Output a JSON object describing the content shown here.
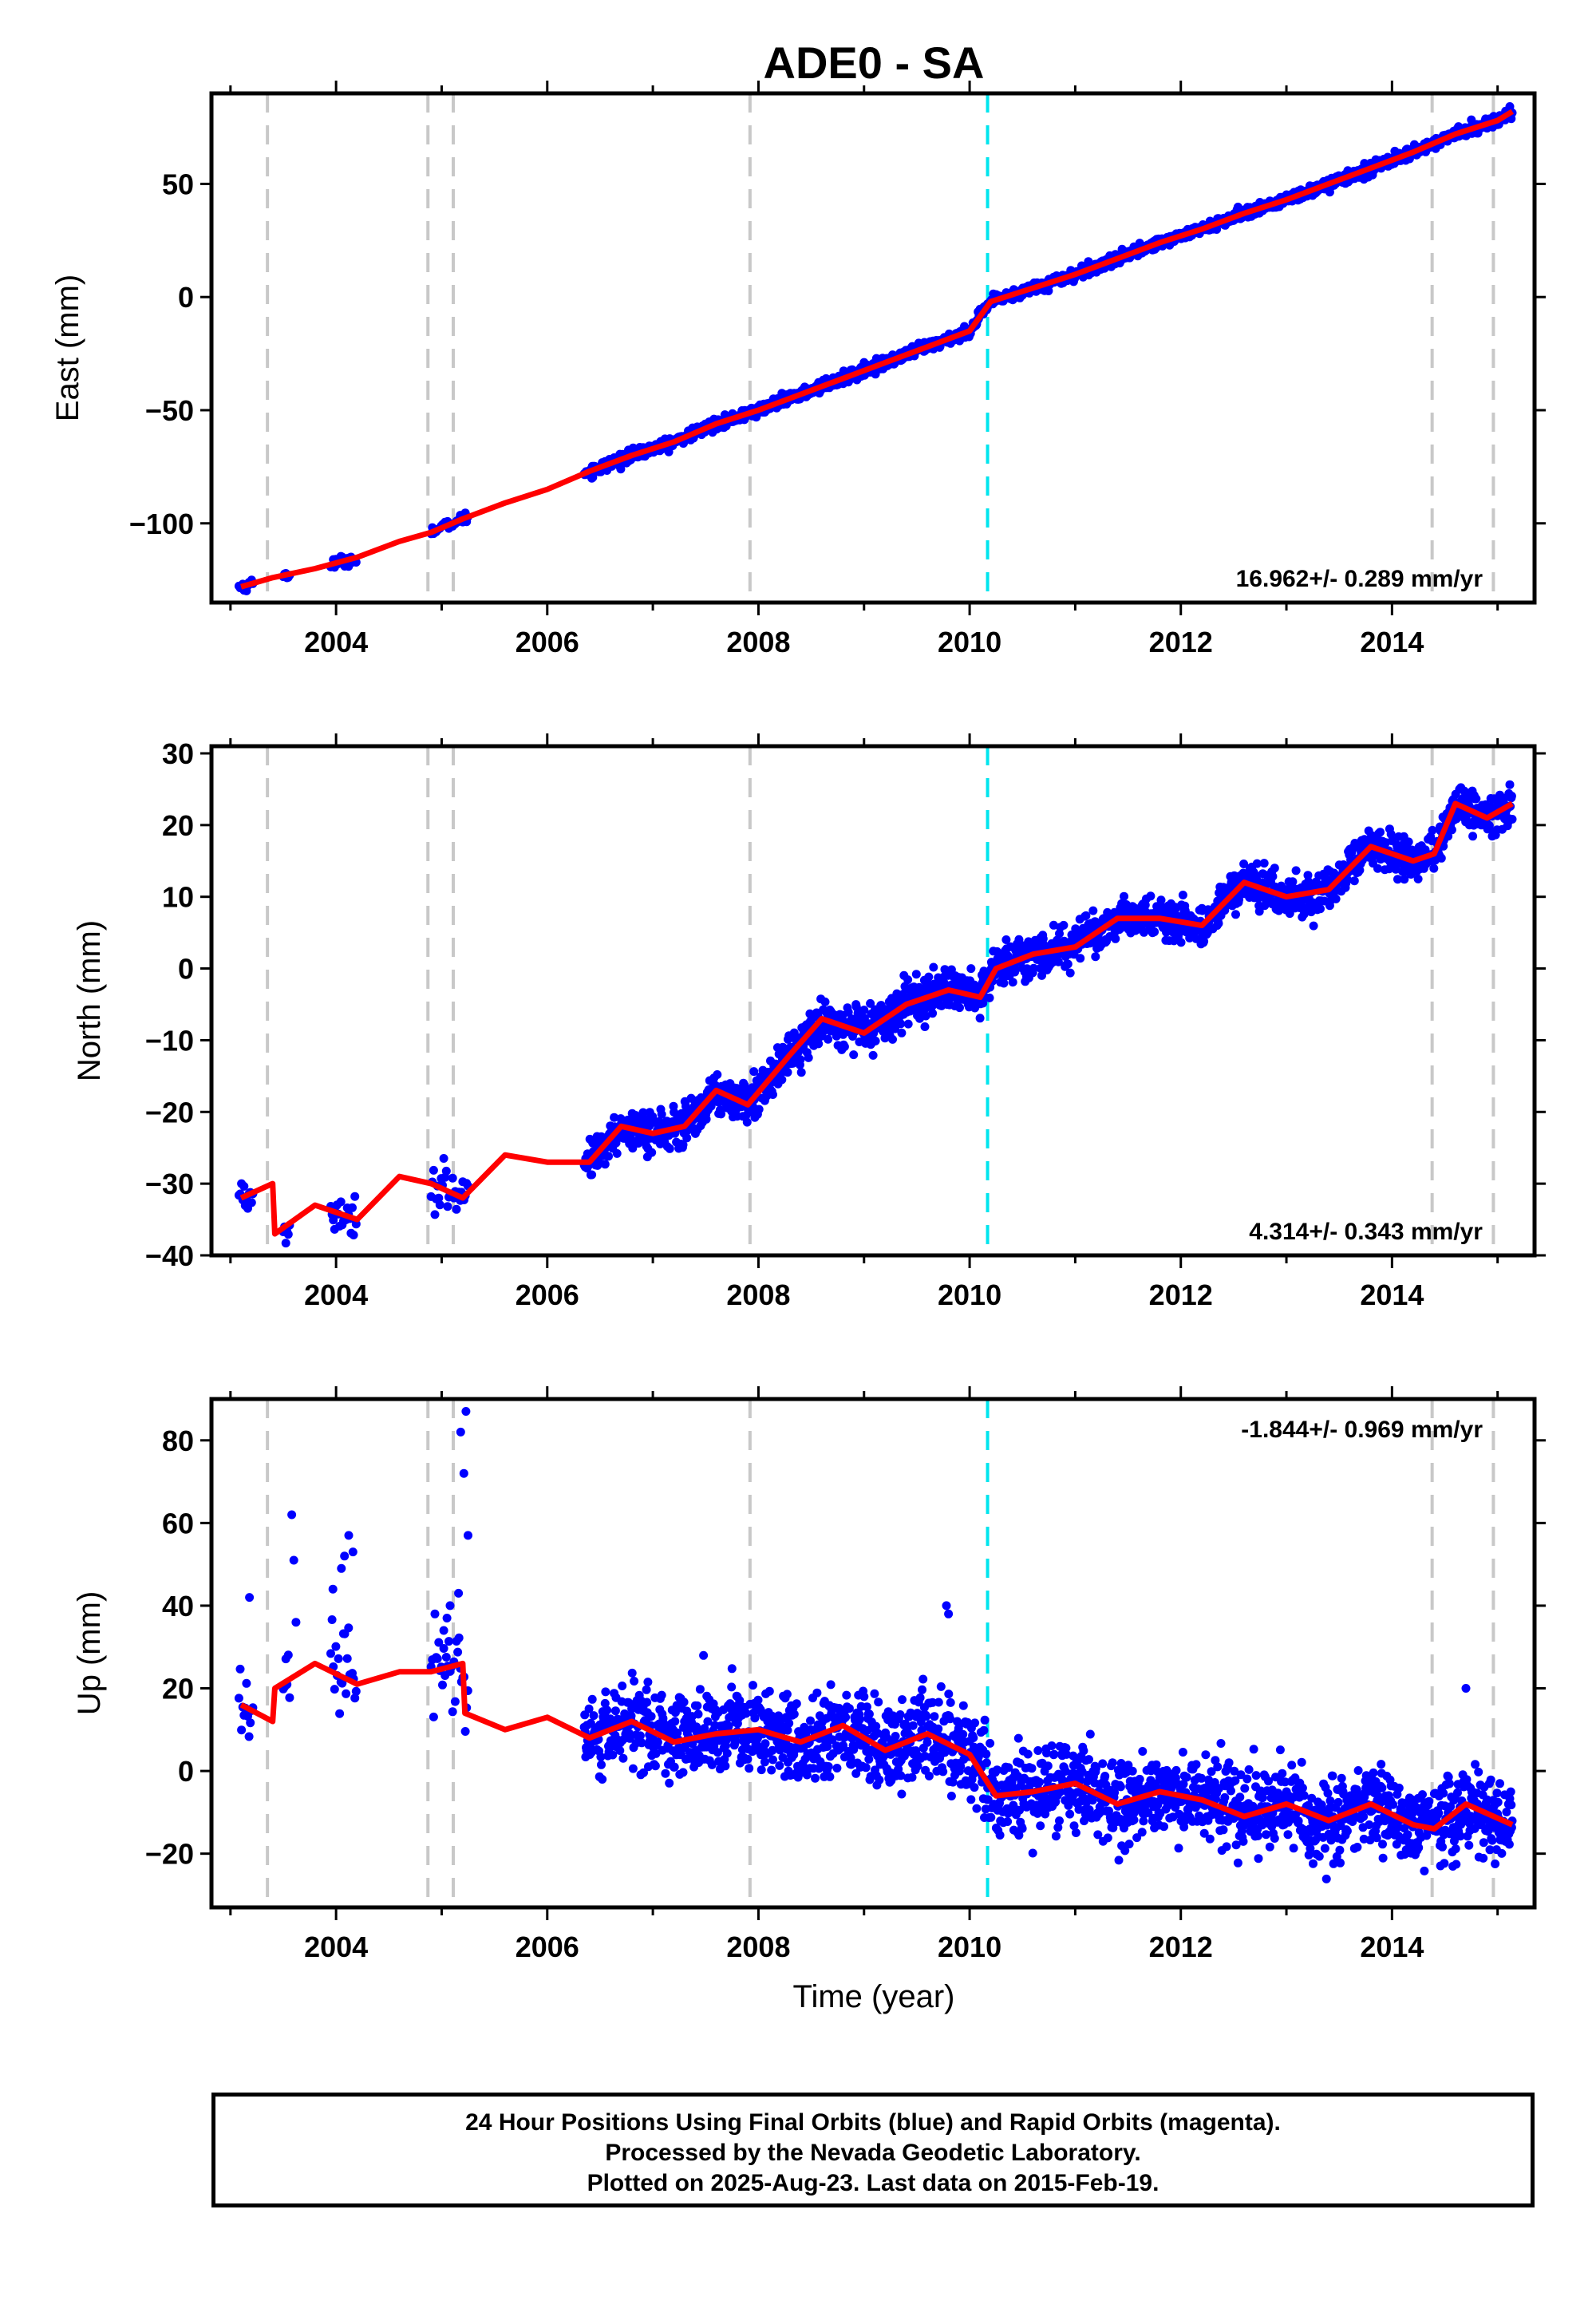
{
  "title": "ADE0 - SA",
  "xlabel": "Time (year)",
  "footer": {
    "line1": "24 Hour Positions Using Final Orbits (blue) and Rapid Orbits (magenta).",
    "line2": "Processed by the Nevada Geodetic Laboratory.",
    "line3": "Plotted on 2025-Aug-23. Last data on 2015-Feb-19."
  },
  "colors": {
    "data": "#0000ff",
    "model": "#ff0000",
    "equipment_change": "#c8c8c8",
    "earthquake": "#00e5ee",
    "frame": "#000000"
  },
  "chart_data": [
    {
      "type": "scatter",
      "ylabel": "East (mm)",
      "rate_label": "16.962+/- 0.289 mm/yr",
      "xlim": [
        2002.82,
        2015.35
      ],
      "ylim": [
        -135,
        90
      ],
      "xticks": [
        2004,
        2006,
        2008,
        2010,
        2012,
        2014
      ],
      "yticks": [
        -100,
        -50,
        0,
        50
      ],
      "rate": 16.962,
      "series": [
        {
          "role": "model",
          "x": [
            2003.1,
            2003.4,
            2003.8,
            2004.2,
            2004.6,
            2004.9,
            2005.2,
            2005.6,
            2006.0,
            2006.4,
            2006.8,
            2007.2,
            2007.6,
            2008.0,
            2008.4,
            2008.8,
            2009.2,
            2009.6,
            2010.0,
            2010.2,
            2010.6,
            2011.0,
            2011.4,
            2011.8,
            2012.2,
            2012.6,
            2013.0,
            2013.4,
            2013.8,
            2014.2,
            2014.6,
            2015.0,
            2015.14
          ],
          "y": [
            -128,
            -124,
            -120,
            -115,
            -108,
            -104,
            -98,
            -91,
            -85,
            -77,
            -70,
            -64,
            -56,
            -50,
            -43,
            -36,
            -29,
            -22,
            -15,
            -2,
            4,
            10,
            17,
            24,
            30,
            37,
            43,
            50,
            57,
            64,
            72,
            78,
            82
          ]
        }
      ]
    },
    {
      "type": "scatter",
      "ylabel": "North (mm)",
      "rate_label": "4.314+/- 0.343 mm/yr",
      "xlim": [
        2002.82,
        2015.35
      ],
      "ylim": [
        -40,
        31
      ],
      "xticks": [
        2004,
        2006,
        2008,
        2010,
        2012,
        2014
      ],
      "yticks": [
        -40,
        -30,
        -20,
        -10,
        0,
        10,
        20,
        30
      ],
      "rate": 4.314,
      "series": [
        {
          "role": "model",
          "x": [
            2003.1,
            2003.4,
            2003.42,
            2003.8,
            2004.2,
            2004.6,
            2004.9,
            2005.2,
            2005.6,
            2006.0,
            2006.4,
            2006.7,
            2007.0,
            2007.3,
            2007.6,
            2007.9,
            2008.3,
            2008.6,
            2009.0,
            2009.4,
            2009.8,
            2010.1,
            2010.25,
            2010.6,
            2011.0,
            2011.4,
            2011.8,
            2012.2,
            2012.6,
            2013.0,
            2013.4,
            2013.8,
            2014.2,
            2014.4,
            2014.6,
            2014.9,
            2015.14
          ],
          "y": [
            -32,
            -30,
            -37,
            -33,
            -35,
            -29,
            -30,
            -32,
            -26,
            -27,
            -27,
            -22,
            -23,
            -22,
            -17,
            -19,
            -12,
            -7,
            -9,
            -5,
            -3,
            -4,
            0,
            2,
            3,
            7,
            7,
            6,
            12,
            10,
            11,
            17,
            15,
            16,
            23,
            21,
            23
          ]
        }
      ]
    },
    {
      "type": "scatter",
      "ylabel": "Up (mm)",
      "rate_label": "-1.844+/- 0.969 mm/yr",
      "xlim": [
        2002.82,
        2015.35
      ],
      "ylim": [
        -33,
        90
      ],
      "xticks": [
        2004,
        2006,
        2008,
        2010,
        2012,
        2014
      ],
      "yticks": [
        -20,
        0,
        20,
        40,
        60,
        80
      ],
      "rate": -1.844,
      "series": [
        {
          "role": "model",
          "x": [
            2003.1,
            2003.4,
            2003.42,
            2003.8,
            2004.2,
            2004.6,
            2004.9,
            2005.2,
            2005.22,
            2005.6,
            2006.0,
            2006.4,
            2006.8,
            2007.2,
            2007.6,
            2008.0,
            2008.4,
            2008.8,
            2009.2,
            2009.6,
            2010.0,
            2010.2,
            2010.25,
            2010.6,
            2011.0,
            2011.4,
            2011.8,
            2012.2,
            2012.6,
            2013.0,
            2013.4,
            2013.8,
            2014.2,
            2014.4,
            2014.7,
            2015.14
          ],
          "y": [
            16,
            12,
            20,
            26,
            21,
            24,
            24,
            26,
            14,
            10,
            13,
            8,
            12,
            7,
            9,
            10,
            7,
            11,
            5,
            9,
            4,
            -4,
            -6,
            -5,
            -3,
            -8,
            -5,
            -7,
            -11,
            -8,
            -12,
            -8,
            -13,
            -14,
            -8,
            -13
          ]
        }
      ]
    }
  ],
  "steps": {
    "equipment_change": [
      2003.35,
      2004.87,
      2005.11,
      2007.92,
      2014.38,
      2014.96
    ],
    "earthquake": [
      2010.17
    ]
  }
}
